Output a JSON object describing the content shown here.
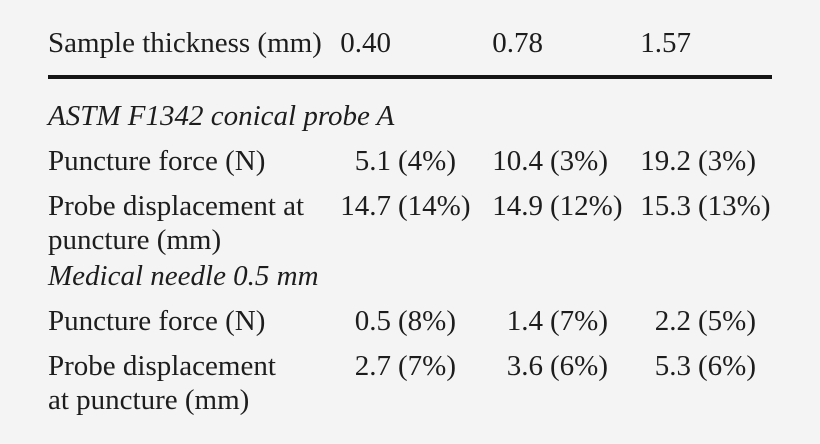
{
  "page": {
    "background_color": "#f4f4f4",
    "text_color": "#1d1d1d",
    "rule_color": "#151515"
  },
  "table": {
    "header": {
      "label": "Sample thickness (mm)",
      "values": [
        "0.40",
        "0.78",
        "1.57"
      ]
    },
    "sections": [
      {
        "title": "ASTM F1342 conical probe A",
        "rows": [
          {
            "label_line1": "Puncture force (N)",
            "label_line2": "",
            "cells": [
              {
                "num": "5.1",
                "pct": "(4%)"
              },
              {
                "num": "10.4",
                "pct": "(3%)"
              },
              {
                "num": "19.2",
                "pct": "(3%)"
              }
            ]
          },
          {
            "label_line1": "Probe displacement at",
            "label_line2": "puncture (mm)",
            "cells": [
              {
                "num": "14.7",
                "pct": "(14%)"
              },
              {
                "num": "14.9",
                "pct": "(12%)"
              },
              {
                "num": "15.3",
                "pct": "(13%)"
              }
            ]
          }
        ]
      },
      {
        "title": "Medical needle 0.5 mm",
        "rows": [
          {
            "label_line1": "Puncture force (N)",
            "label_line2": "",
            "cells": [
              {
                "num": "0.5",
                "pct": "(8%)"
              },
              {
                "num": "1.4",
                "pct": "(7%)"
              },
              {
                "num": "2.2",
                "pct": "(5%)"
              }
            ]
          },
          {
            "label_line1": "Probe displacement",
            "label_line2": "at puncture (mm)",
            "cells": [
              {
                "num": "2.7",
                "pct": "(7%)"
              },
              {
                "num": "3.6",
                "pct": "(6%)"
              },
              {
                "num": "5.3",
                "pct": "(6%)"
              }
            ]
          }
        ]
      }
    ]
  }
}
